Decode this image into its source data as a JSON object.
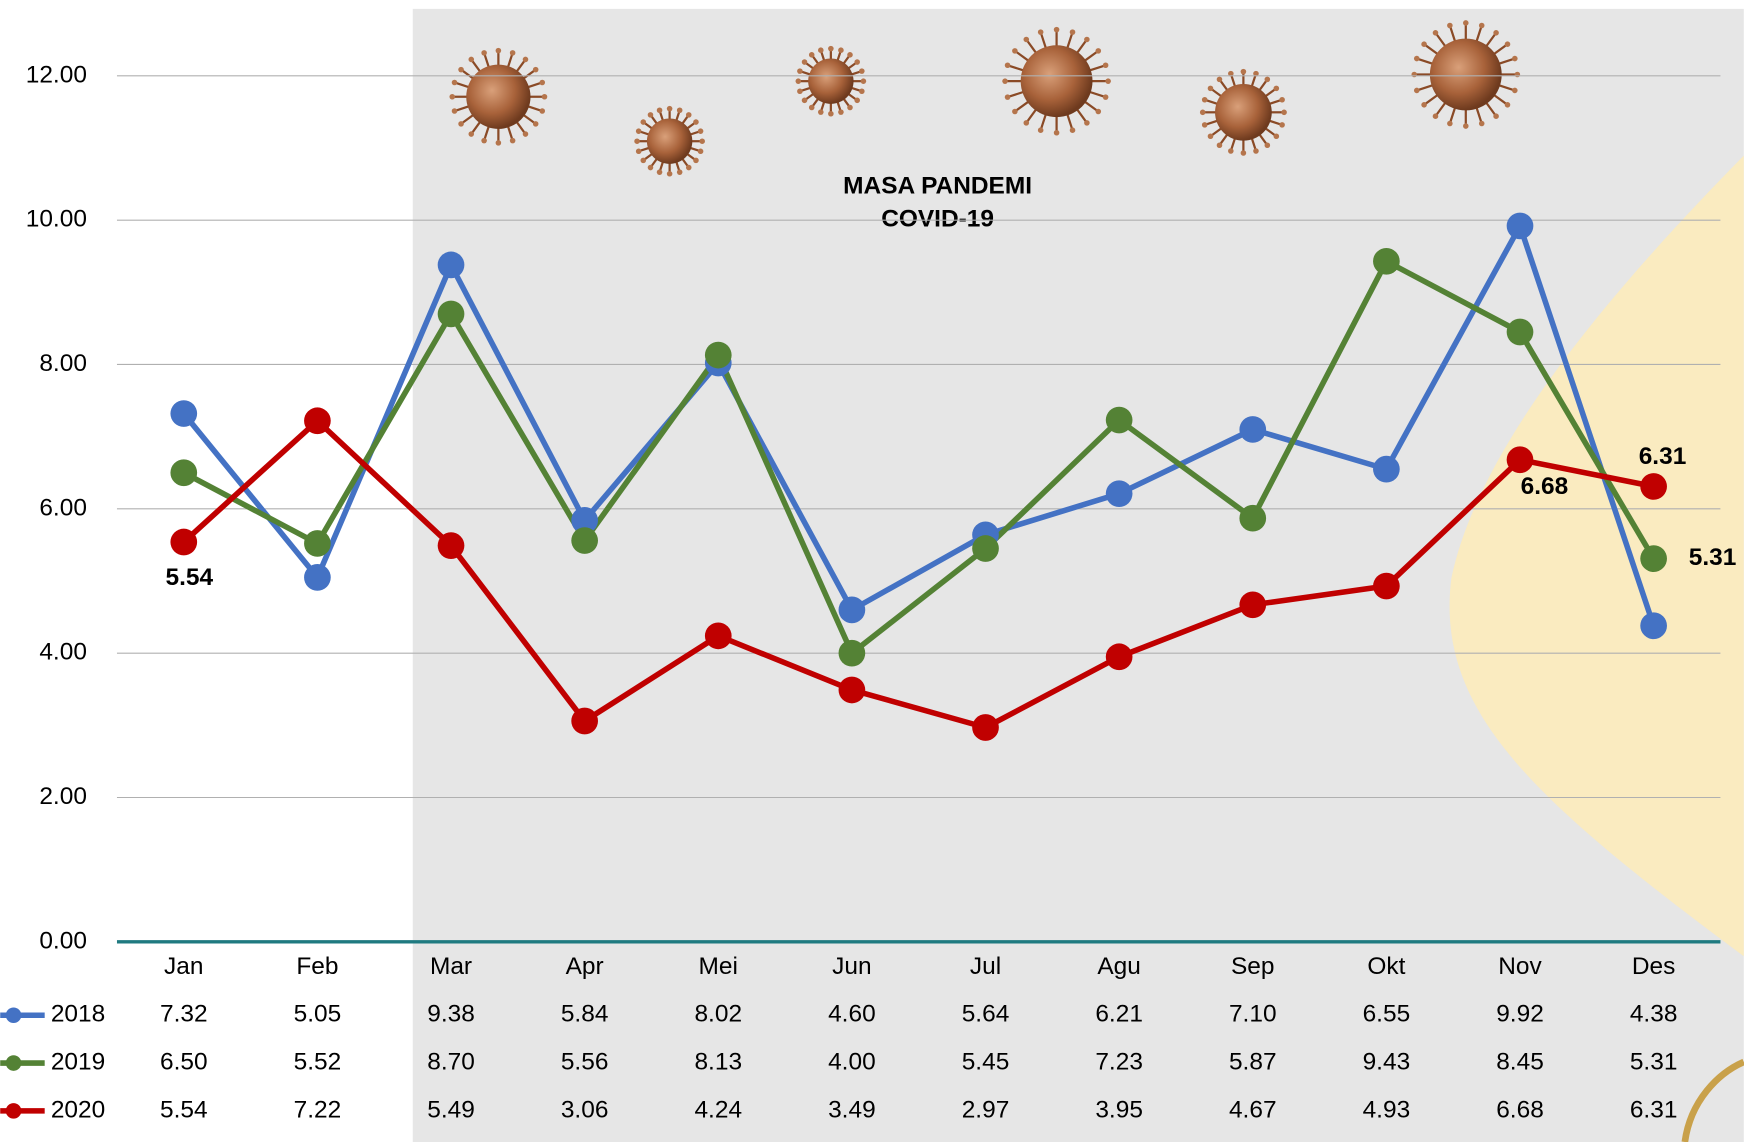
{
  "chart_data": {
    "type": "line",
    "annotation": [
      "MASA PANDEMI",
      "COVID-19"
    ],
    "categories": [
      "Jan",
      "Feb",
      "Mar",
      "Apr",
      "Mei",
      "Jun",
      "Jul",
      "Agu",
      "Sep",
      "Okt",
      "Nov",
      "Des"
    ],
    "series": [
      {
        "name": "2018",
        "color": "#4472c4",
        "values": [
          7.32,
          5.05,
          9.38,
          5.84,
          8.02,
          4.6,
          5.64,
          6.21,
          7.1,
          6.55,
          9.92,
          4.38
        ],
        "value_labels": [
          "7.32",
          "5.05",
          "9.38",
          "5.84",
          "8.02",
          "4.60",
          "5.64",
          "6.21",
          "7.10",
          "6.55",
          "9.92",
          "4.38"
        ]
      },
      {
        "name": "2019",
        "color": "#548235",
        "values": [
          6.5,
          5.52,
          8.7,
          5.56,
          8.13,
          4.0,
          5.45,
          7.23,
          5.87,
          9.43,
          8.45,
          5.31
        ],
        "value_labels": [
          "6.50",
          "5.52",
          "8.70",
          "5.56",
          "8.13",
          "4.00",
          "5.45",
          "7.23",
          "5.87",
          "9.43",
          "8.45",
          "5.31"
        ]
      },
      {
        "name": "2020",
        "color": "#c00000",
        "values": [
          5.54,
          7.22,
          5.49,
          3.06,
          4.24,
          3.49,
          2.97,
          3.95,
          4.67,
          4.93,
          6.68,
          6.31
        ],
        "value_labels": [
          "5.54",
          "7.22",
          "5.49",
          "3.06",
          "4.24",
          "3.49",
          "2.97",
          "3.95",
          "4.67",
          "4.93",
          "6.68",
          "6.31"
        ]
      }
    ],
    "ylim": [
      0,
      12.8
    ],
    "yticks": [
      {
        "value": 0,
        "label": "0.00"
      },
      {
        "value": 2,
        "label": "2.00"
      },
      {
        "value": 4,
        "label": "4.00"
      },
      {
        "value": 6,
        "label": "6.00"
      },
      {
        "value": 8,
        "label": "8.00"
      },
      {
        "value": 10,
        "label": "10.00"
      },
      {
        "value": 12,
        "label": "12.00"
      }
    ],
    "grid": true
  }
}
